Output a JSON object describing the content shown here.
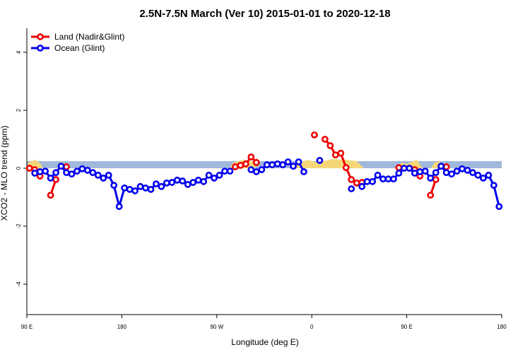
{
  "chart_data": {
    "type": "line",
    "title": "2.5N-7.5N March (Ver 10)   2015-01-01 to 2020-12-18",
    "xlabel": "Longitude (deg E)",
    "ylabel": "XCO2 - MLO trend (ppm)",
    "xlim": [
      90,
      540
    ],
    "ylim": [
      -5.05,
      4.83
    ],
    "xticks": [
      {
        "value": 90,
        "label": "90 E"
      },
      180,
      {
        "value": 270,
        "label": "90 W"
      },
      {
        "value": 360,
        "label": "0"
      },
      {
        "value": 450,
        "label": "90 E"
      },
      {
        "value": 540,
        "label": "180"
      }
    ],
    "yticks": [
      -4,
      -2,
      0,
      2,
      4
    ],
    "legend": "topleft",
    "series": [
      {
        "name": "Land (Nadir&Glint)",
        "color": "#ee0000",
        "x": [
          92.5,
          97.5,
          102.5,
          107.5,
          112.5,
          117.5,
          122.5,
          127.5,
          132.5,
          287.5,
          292.5,
          297.5,
          302.5,
          307.5,
          312.5,
          362.5,
          367.5,
          372.5,
          377.5,
          382.5,
          387.5,
          392.5,
          397.5,
          402.5,
          407.5,
          412.5,
          442.5,
          447.5,
          452.5,
          457.5,
          462.5,
          467.5,
          472.5,
          477.5,
          482.5,
          487.5
        ],
        "values": [
          0.0,
          -0.05,
          -0.27,
          null,
          -0.93,
          -0.39,
          null,
          0.05,
          null,
          0.05,
          0.1,
          0.15,
          0.39,
          0.2,
          null,
          1.15,
          null,
          1.0,
          0.78,
          0.46,
          0.52,
          0.02,
          -0.39,
          -0.51,
          -0.49,
          null,
          0.02,
          null,
          0.0,
          -0.05,
          -0.27,
          null,
          -0.93,
          -0.39,
          null,
          0.05
        ]
      },
      {
        "name": "Ocean (Glint)",
        "color": "#0000ee",
        "x": [
          97.5,
          102.5,
          107.5,
          112.5,
          117.5,
          122.5,
          127.5,
          132.5,
          137.5,
          142.5,
          147.5,
          152.5,
          157.5,
          162.5,
          167.5,
          172.5,
          177.5,
          182.5,
          187.5,
          192.5,
          197.5,
          202.5,
          207.5,
          212.5,
          217.5,
          222.5,
          227.5,
          232.5,
          237.5,
          242.5,
          247.5,
          252.5,
          257.5,
          262.5,
          267.5,
          272.5,
          277.5,
          282.5,
          287.5,
          302.5,
          307.5,
          312.5,
          317.5,
          322.5,
          327.5,
          332.5,
          337.5,
          342.5,
          347.5,
          352.5,
          357.5,
          367.5,
          372.5,
          397.5,
          402.5,
          407.5,
          412.5,
          417.5,
          422.5,
          427.5,
          432.5,
          437.5,
          442.5,
          447.5,
          452.5,
          457.5,
          462.5,
          467.5,
          472.5,
          477.5,
          482.5,
          487.5,
          492.5,
          497.5,
          502.5,
          507.5,
          512.5,
          517.5,
          522.5,
          527.5,
          532.5,
          537.5
        ],
        "values": [
          -0.17,
          -0.12,
          -0.1,
          -0.34,
          -0.15,
          0.07,
          -0.15,
          -0.2,
          -0.1,
          -0.02,
          -0.07,
          -0.15,
          -0.24,
          -0.34,
          -0.24,
          -0.59,
          -1.32,
          -0.68,
          -0.73,
          -0.78,
          -0.63,
          -0.68,
          -0.73,
          -0.54,
          -0.63,
          -0.51,
          -0.49,
          -0.41,
          -0.44,
          -0.56,
          -0.49,
          -0.41,
          -0.46,
          -0.24,
          -0.34,
          -0.24,
          -0.1,
          -0.1,
          null,
          -0.05,
          -0.12,
          -0.05,
          0.12,
          0.12,
          0.15,
          0.12,
          0.22,
          0.07,
          0.22,
          -0.12,
          null,
          0.27,
          null,
          -0.71,
          null,
          -0.63,
          -0.46,
          -0.46,
          -0.24,
          -0.37,
          -0.37,
          -0.37,
          -0.17,
          0.0,
          0.0,
          -0.17,
          -0.12,
          -0.1,
          -0.34,
          -0.15,
          0.07,
          -0.15,
          -0.2,
          -0.1,
          -0.02,
          -0.07,
          -0.15,
          -0.24,
          -0.34,
          -0.24,
          -0.59,
          -1.32
        ]
      }
    ]
  }
}
